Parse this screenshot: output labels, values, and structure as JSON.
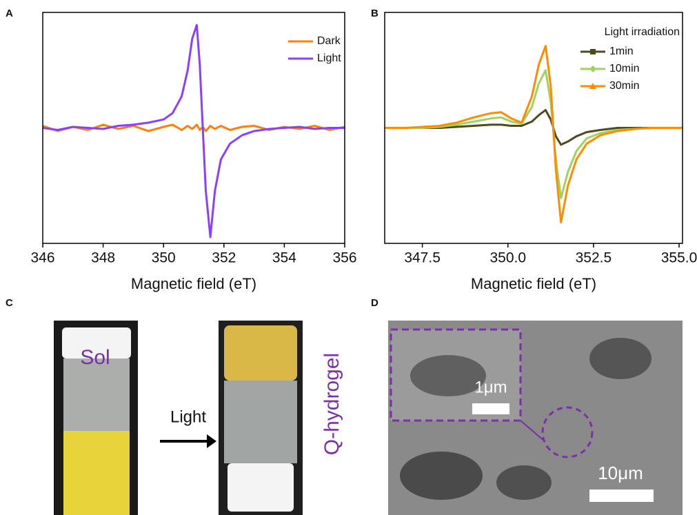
{
  "panel_labels": [
    "A",
    "B",
    "C",
    "D"
  ],
  "chart_data": [
    {
      "type": "line",
      "x_label": "Magnetic field (eT)",
      "xlim": [
        346,
        356
      ],
      "xticks": [
        346,
        348,
        350,
        352,
        354,
        356
      ],
      "ylim": [
        -1.1,
        1.1
      ],
      "legend": "upper right",
      "x": [
        346,
        346.5,
        347,
        347.5,
        348,
        348.5,
        349,
        349.5,
        350,
        350.3,
        350.6,
        350.8,
        350.95,
        351.1,
        351.2,
        351.3,
        351.4,
        351.55,
        351.7,
        351.9,
        352.2,
        352.6,
        353,
        353.5,
        354,
        354.5,
        355,
        355.5,
        356
      ],
      "series": [
        {
          "name": "Dark",
          "color": "#ff7f0e",
          "values": [
            0.02,
            -0.03,
            0.01,
            -0.02,
            0.03,
            -0.01,
            0.02,
            -0.03,
            0.01,
            0.03,
            -0.02,
            0.02,
            -0.01,
            0.03,
            -0.02,
            0.01,
            -0.03,
            0.02,
            -0.01,
            0.02,
            -0.02,
            0.01,
            0.02,
            -0.02,
            0.01,
            -0.01,
            0.02,
            -0.02,
            0.01
          ]
        },
        {
          "name": "Light",
          "color": "#8a3ffc",
          "values": [
            0.0,
            -0.02,
            0.01,
            0.0,
            -0.01,
            0.02,
            0.03,
            0.05,
            0.08,
            0.14,
            0.3,
            0.55,
            0.85,
            0.98,
            0.6,
            0.0,
            -0.6,
            -1.04,
            -0.6,
            -0.3,
            -0.15,
            -0.07,
            -0.03,
            -0.01,
            0.0,
            0.01,
            -0.01,
            0.0,
            0.0
          ]
        }
      ]
    },
    {
      "type": "line",
      "x_label": "Magnetic field (eT)",
      "legend_title": "Light irradiation",
      "xlim": [
        346.4,
        355.1
      ],
      "xticks": [
        347.5,
        {
          "value": 350,
          "label": "350.0"
        },
        352.5,
        {
          "value": 355,
          "label": "355.0"
        }
      ],
      "ylim": [
        -1.1,
        1.1
      ],
      "legend": "upper right",
      "x": [
        346.4,
        347,
        347.5,
        348,
        348.5,
        349,
        349.5,
        349.8,
        350.1,
        350.4,
        350.7,
        350.9,
        351.1,
        351.25,
        351.4,
        351.55,
        351.75,
        352,
        352.3,
        352.7,
        353.2,
        353.7,
        354.2,
        354.7,
        355.1
      ],
      "series": [
        {
          "name": "1min",
          "color": "#4d4a1c",
          "marker": "square",
          "values": [
            0,
            0,
            0,
            0,
            0.01,
            0.02,
            0.03,
            0.03,
            0.02,
            0.02,
            0.06,
            0.12,
            0.17,
            0.08,
            -0.08,
            -0.16,
            -0.13,
            -0.08,
            -0.04,
            -0.02,
            0,
            0,
            0,
            0,
            0
          ]
        },
        {
          "name": "10min",
          "color": "#9fd35f",
          "marker": "diamond",
          "values": [
            0,
            0,
            0,
            0.01,
            0.03,
            0.06,
            0.09,
            0.1,
            0.06,
            0.04,
            0.2,
            0.42,
            0.55,
            0.25,
            -0.3,
            -0.67,
            -0.42,
            -0.22,
            -0.1,
            -0.05,
            -0.02,
            -0.01,
            0,
            0,
            0
          ]
        },
        {
          "name": "30min",
          "color": "#ff8c00",
          "marker": "triangle",
          "values": [
            0,
            0,
            0.01,
            0.02,
            0.05,
            0.1,
            0.14,
            0.15,
            0.09,
            0.05,
            0.3,
            0.6,
            0.78,
            0.4,
            -0.4,
            -0.9,
            -0.55,
            -0.3,
            -0.15,
            -0.07,
            -0.03,
            -0.01,
            0,
            0,
            0
          ]
        }
      ]
    }
  ],
  "photo_c": {
    "sol": "Sol",
    "arrow": "Light",
    "gel": "Q-hydrogel"
  },
  "photo_d": {
    "inset_scale": "1μm",
    "scale": "10μm"
  }
}
